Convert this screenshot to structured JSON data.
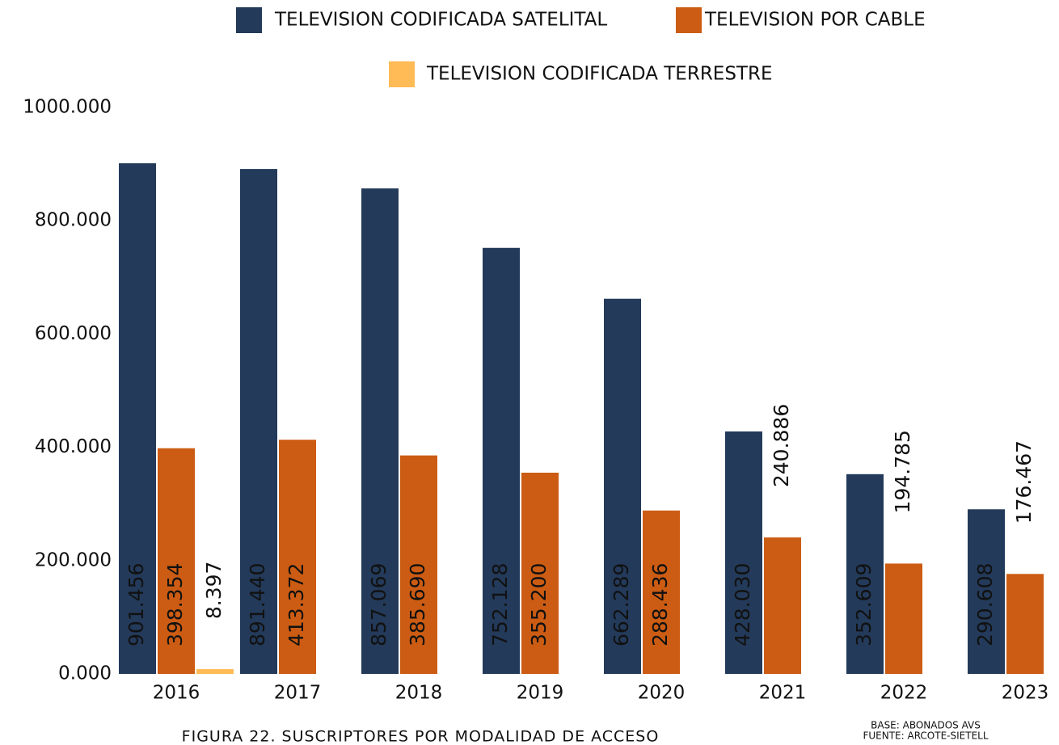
{
  "chart_data": {
    "type": "bar",
    "categories": [
      "2016",
      "2017",
      "2018",
      "2019",
      "2020",
      "2021",
      "2022",
      "2023"
    ],
    "series": [
      {
        "name": "TELEVISION CODIFICADA SATELITAL",
        "color": "#233a5a",
        "values": [
          901456,
          891440,
          857069,
          752128,
          662289,
          428030,
          352609,
          290608
        ],
        "value_labels": [
          "901.456",
          "891.440",
          "857.069",
          "752.128",
          "662.289",
          "428.030",
          "352.609",
          "290.608"
        ]
      },
      {
        "name": "TELEVISION POR CABLE",
        "color": "#cc5c13",
        "values": [
          398354,
          413372,
          385690,
          355200,
          288436,
          240886,
          194785,
          176467
        ],
        "value_labels": [
          "398.354",
          "413.372",
          "385.690",
          "355.200",
          "288.436",
          "240.886",
          "194.785",
          "176.467"
        ]
      },
      {
        "name": "TELEVISION CODIFICADA TERRESTRE",
        "color": "#ffbb55",
        "values": [
          8397,
          null,
          null,
          null,
          null,
          null,
          null,
          null
        ],
        "value_labels": [
          "8.397",
          null,
          null,
          null,
          null,
          null,
          null,
          null
        ]
      }
    ],
    "ylim": [
      0,
      1000000
    ],
    "yticks": [
      {
        "value": 0,
        "label": "0.000"
      },
      {
        "value": 200000,
        "label": "200.000"
      },
      {
        "value": 400000,
        "label": "400.000"
      },
      {
        "value": 600000,
        "label": "600.000"
      },
      {
        "value": 800000,
        "label": "800.000"
      },
      {
        "value": 1000000,
        "label": "1000.000"
      }
    ],
    "grid": false,
    "caption": "FIGURA 22. SUSCRIPTORES POR MODALIDAD DE ACCESO",
    "source": [
      "BASE: ABONADOS AVS",
      "FUENTE: ARCOTE-SIETELL"
    ]
  }
}
